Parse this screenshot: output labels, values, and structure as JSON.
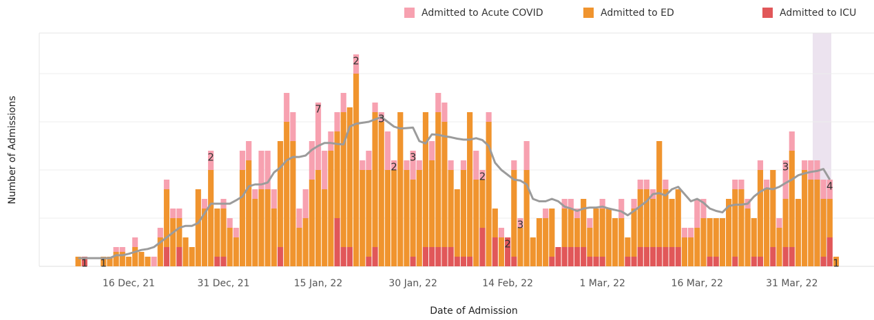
{
  "chart_data": {
    "type": "stacked_bar",
    "x_label": "Date of Admission",
    "y_label": "Number of Admissions",
    "categories": [
      null,
      null,
      null,
      null,
      null,
      null,
      null,
      null,
      "16 Dec, 21",
      null,
      null,
      null,
      null,
      null,
      null,
      null,
      null,
      null,
      null,
      null,
      null,
      null,
      null,
      "31 Dec, 21",
      null,
      null,
      null,
      null,
      null,
      null,
      null,
      null,
      null,
      null,
      null,
      null,
      null,
      null,
      "15 Jan, 22",
      null,
      null,
      null,
      null,
      null,
      null,
      null,
      null,
      null,
      null,
      null,
      null,
      null,
      null,
      "30 Jan, 22",
      null,
      null,
      null,
      null,
      null,
      null,
      null,
      null,
      null,
      null,
      null,
      null,
      null,
      null,
      "14 Feb, 22",
      null,
      null,
      null,
      null,
      null,
      null,
      null,
      null,
      null,
      null,
      null,
      null,
      null,
      null,
      "1 Mar, 22",
      null,
      null,
      null,
      null,
      null,
      null,
      null,
      null,
      null,
      null,
      null,
      null,
      null,
      null,
      "16 Mar, 22",
      null,
      null,
      null,
      null,
      null,
      null,
      null,
      null,
      null,
      null,
      null,
      null,
      null,
      null,
      "31 Mar, 22",
      null,
      null,
      null,
      null,
      null,
      null,
      null
    ],
    "series": [
      {
        "name": "Admitted to Acute COVID",
        "color": "#f7a1b0",
        "values": [
          0,
          0,
          0,
          0,
          0,
          0,
          1,
          1,
          0,
          2,
          0,
          0,
          2,
          2,
          2,
          2,
          2,
          0,
          0,
          0,
          2,
          4,
          0,
          2,
          2,
          2,
          4,
          4,
          2,
          8,
          8,
          4,
          0,
          6,
          6,
          4,
          6,
          8,
          14,
          8,
          4,
          4,
          4,
          0,
          4,
          2,
          4,
          2,
          2,
          8,
          2,
          0,
          2,
          6,
          2,
          0,
          4,
          4,
          4,
          2,
          0,
          2,
          0,
          6,
          2,
          2,
          0,
          2,
          0,
          2,
          2,
          6,
          0,
          0,
          2,
          0,
          0,
          2,
          2,
          2,
          0,
          2,
          0,
          2,
          0,
          0,
          4,
          0,
          2,
          2,
          2,
          2,
          0,
          2,
          0,
          0,
          2,
          2,
          6,
          4,
          0,
          0,
          0,
          0,
          2,
          2,
          2,
          0,
          2,
          2,
          0,
          2,
          8,
          4,
          0,
          2,
          4,
          4,
          4,
          4,
          0
        ]
      },
      {
        "name": "Admitted to ED",
        "color": "#f0942e",
        "values": [
          2,
          0,
          0,
          0,
          2,
          2,
          3,
          3,
          2,
          4,
          3,
          2,
          0,
          6,
          12,
          10,
          6,
          6,
          4,
          16,
          12,
          20,
          10,
          10,
          8,
          6,
          20,
          22,
          14,
          16,
          16,
          12,
          22,
          30,
          26,
          8,
          10,
          18,
          20,
          16,
          24,
          18,
          28,
          29,
          40,
          20,
          18,
          28,
          30,
          20,
          20,
          32,
          20,
          16,
          20,
          28,
          18,
          28,
          26,
          16,
          14,
          18,
          30,
          18,
          10,
          30,
          6,
          6,
          0,
          18,
          8,
          20,
          6,
          10,
          10,
          10,
          0,
          8,
          8,
          6,
          10,
          6,
          10,
          10,
          12,
          10,
          10,
          4,
          10,
          12,
          12,
          10,
          22,
          12,
          10,
          12,
          6,
          6,
          8,
          10,
          8,
          8,
          10,
          14,
          14,
          16,
          12,
          8,
          18,
          16,
          16,
          8,
          10,
          20,
          14,
          20,
          18,
          18,
          12,
          8,
          2
        ]
      },
      {
        "name": "Admitted to ICU",
        "color": "#e15759",
        "values": [
          0,
          2,
          0,
          0,
          0,
          0,
          0,
          0,
          0,
          0,
          0,
          0,
          0,
          0,
          4,
          0,
          4,
          0,
          0,
          0,
          0,
          0,
          2,
          2,
          0,
          0,
          0,
          0,
          0,
          0,
          0,
          0,
          4,
          0,
          0,
          0,
          0,
          0,
          0,
          0,
          0,
          10,
          4,
          4,
          0,
          0,
          2,
          4,
          0,
          0,
          0,
          0,
          0,
          2,
          0,
          4,
          4,
          4,
          4,
          4,
          2,
          2,
          2,
          0,
          8,
          0,
          6,
          0,
          6,
          2,
          0,
          0,
          0,
          0,
          0,
          2,
          4,
          4,
          4,
          4,
          4,
          2,
          2,
          2,
          0,
          0,
          0,
          2,
          2,
          4,
          4,
          4,
          4,
          4,
          4,
          4,
          0,
          0,
          0,
          0,
          2,
          2,
          0,
          0,
          2,
          0,
          0,
          2,
          2,
          0,
          4,
          0,
          4,
          4,
          0,
          0,
          0,
          0,
          2,
          6,
          0
        ]
      }
    ],
    "bar_labels": [
      null,
      1,
      null,
      null,
      1,
      null,
      null,
      null,
      null,
      null,
      null,
      null,
      null,
      null,
      null,
      null,
      null,
      null,
      null,
      null,
      null,
      2,
      null,
      null,
      null,
      null,
      null,
      null,
      null,
      null,
      null,
      null,
      null,
      null,
      null,
      null,
      null,
      null,
      7,
      null,
      null,
      null,
      null,
      null,
      2,
      null,
      null,
      null,
      3,
      null,
      2,
      null,
      null,
      3,
      null,
      null,
      null,
      null,
      null,
      null,
      null,
      null,
      null,
      null,
      2,
      null,
      null,
      null,
      2,
      null,
      3,
      null,
      null,
      null,
      null,
      null,
      null,
      null,
      null,
      null,
      null,
      null,
      null,
      null,
      null,
      null,
      null,
      null,
      null,
      null,
      null,
      null,
      null,
      null,
      null,
      null,
      null,
      null,
      null,
      null,
      null,
      null,
      null,
      null,
      null,
      null,
      null,
      null,
      null,
      null,
      null,
      null,
      3,
      null,
      null,
      null,
      null,
      null,
      null,
      4,
      1
    ],
    "trend": {
      "color": "#9b9b9b",
      "values": [
        1.7,
        1.7,
        1.7,
        1.7,
        1.7,
        1.7,
        2.3,
        2.3,
        2.6,
        3,
        3.4,
        3.6,
        4,
        5,
        6,
        7,
        8,
        8.4,
        8.4,
        9,
        11,
        13,
        13,
        13,
        13,
        13.7,
        14.5,
        16.6,
        17,
        17,
        17.4,
        19.5,
        20.5,
        22,
        22.7,
        22.7,
        23,
        24.2,
        25,
        25.6,
        25.6,
        25.4,
        25.3,
        29,
        29.6,
        29.8,
        30,
        30.5,
        31,
        30,
        29,
        28.6,
        28.7,
        28.8,
        26,
        25.5,
        27.4,
        27.3,
        27,
        26.8,
        26.5,
        26.3,
        26.3,
        26.6,
        26.2,
        25,
        21.5,
        20,
        19,
        18,
        17.8,
        17,
        14,
        13.5,
        13.5,
        14,
        13.5,
        12.4,
        12,
        11.5,
        12,
        12.2,
        12.2,
        12.4,
        12,
        11.7,
        11.4,
        10.6,
        11.5,
        12.5,
        13.5,
        15,
        15.2,
        14.7,
        16,
        16.5,
        15,
        13.5,
        14,
        13.2,
        12,
        11.5,
        11.2,
        12.5,
        12.8,
        12.8,
        13,
        14.5,
        15.5,
        16.2,
        16,
        16.5,
        17.3,
        18,
        18.9,
        19.3,
        19.6,
        19.8,
        20.2,
        18,
        null
      ]
    },
    "ylim": [
      0,
      48
    ],
    "ygrid": [
      10,
      20,
      30,
      40
    ]
  }
}
